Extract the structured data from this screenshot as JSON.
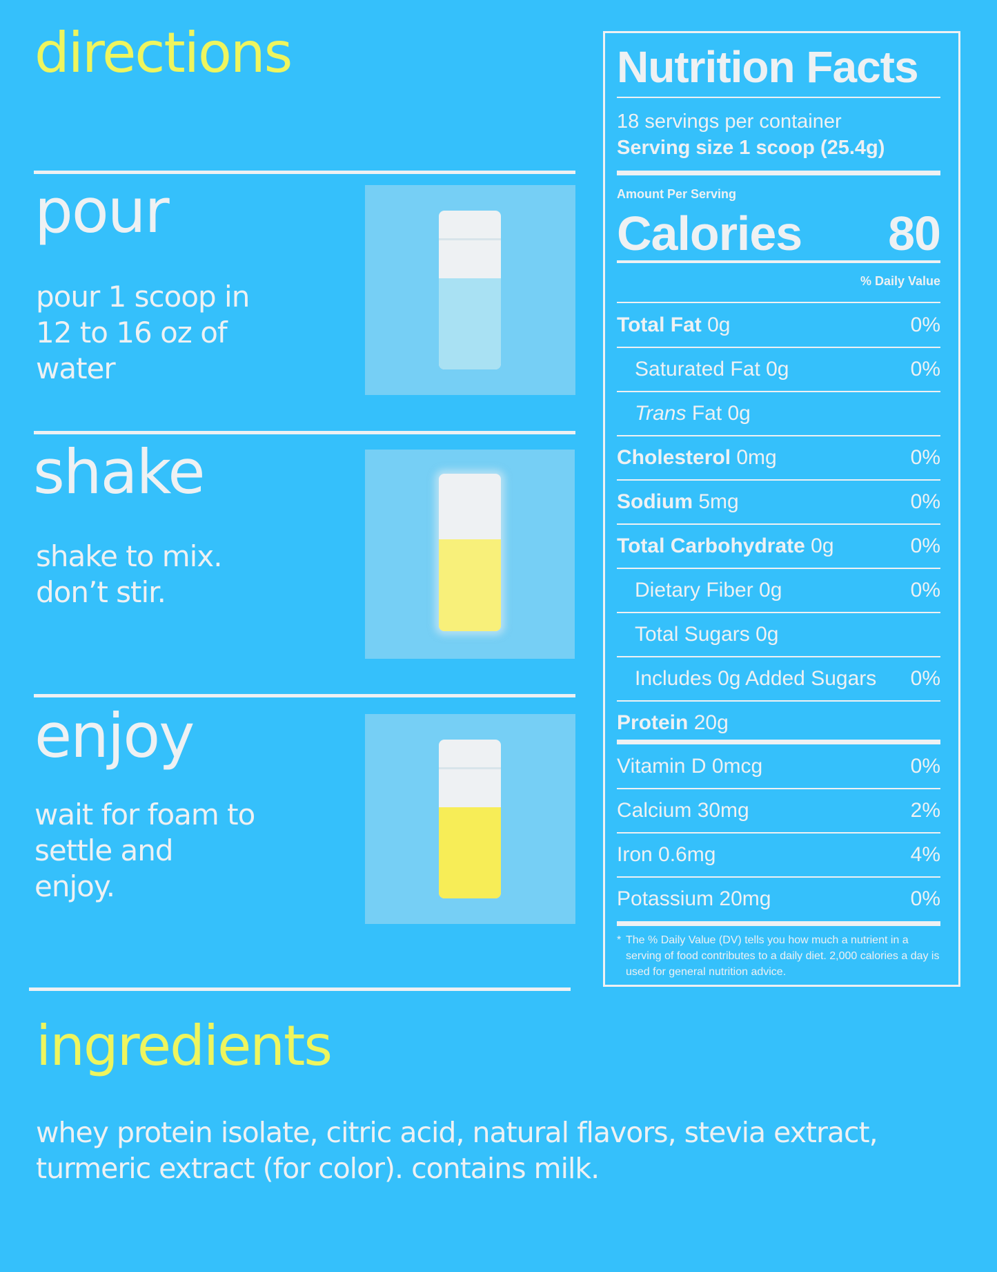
{
  "directions": {
    "title": "directions",
    "steps": [
      {
        "heading": "pour",
        "text": "pour 1 scoop in 12 to 16 oz of water"
      },
      {
        "heading": "shake",
        "text": "shake to mix. don’t stir."
      },
      {
        "heading": "enjoy",
        "text": "wait for foam to settle and enjoy."
      }
    ]
  },
  "ingredients": {
    "title": "ingredients",
    "text": "whey protein isolate, citric acid, natural flavors, stevia extract, turmeric extract (for color). contains milk."
  },
  "nutrition": {
    "title": "Nutrition Facts",
    "servings": "18 servings per container",
    "serving_size": "Serving size 1 scoop (25.4g)",
    "amount_per_serving": "Amount Per Serving",
    "calories_label": "Calories",
    "calories_value": "80",
    "daily_value_header": "% Daily Value",
    "rows": [
      {
        "label": "Total Fat",
        "amount": "0g",
        "dv": "0%"
      },
      {
        "label": "Saturated Fat 0g",
        "amount": "",
        "dv": "0%"
      },
      {
        "label": "Trans",
        "amount": "Fat 0g",
        "dv": ""
      },
      {
        "label": "Cholesterol",
        "amount": "0mg",
        "dv": "0%"
      },
      {
        "label": "Sodium",
        "amount": "5mg",
        "dv": "0%"
      },
      {
        "label": "Total Carbohydrate",
        "amount": "0g",
        "dv": "0%"
      },
      {
        "label": "Dietary Fiber 0g",
        "amount": "",
        "dv": "0%"
      },
      {
        "label": "Total Sugars 0g",
        "amount": "",
        "dv": ""
      },
      {
        "label": "Includes 0g Added Sugars",
        "amount": "",
        "dv": "0%"
      },
      {
        "label": "Protein",
        "amount": "20g",
        "dv": ""
      }
    ],
    "vitamins": [
      {
        "label": "Vitamin D 0mcg",
        "dv": "0%"
      },
      {
        "label": "Calcium 30mg",
        "dv": "2%"
      },
      {
        "label": "Iron 0.6mg",
        "dv": "4%"
      },
      {
        "label": "Potassium 20mg",
        "dv": "0%"
      }
    ],
    "footnote_mark": "*",
    "footnote": "The % Daily Value (DV) tells you how much a nutrient in a serving of food contributes to a daily diet. 2,000 calories a day is used for general nutrition advice."
  },
  "colors": {
    "background": "#35c0fb",
    "accent_yellow": "#eef55e",
    "text": "#eef1f3",
    "liquid_yellow": "#f7ed57"
  }
}
